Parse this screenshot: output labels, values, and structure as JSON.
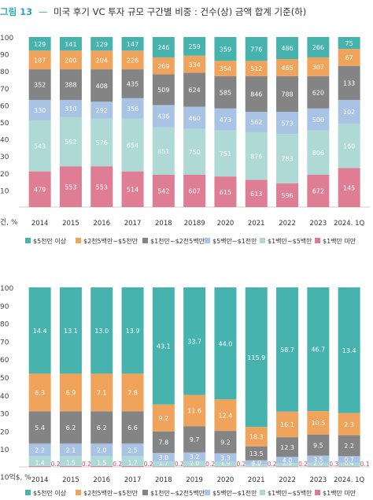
{
  "figure": {
    "label": "그림 13",
    "dash": "—",
    "title": "미국 후기 VC 투자 규모 구간별 비중 : 건수(상) 금액 합계 기준(하)"
  },
  "colors": {
    "title": "#2aa9b5",
    "c5": "#46b3ae",
    "c4": "#f0a35a",
    "c3": "#848484",
    "c2": "#a9c3e4",
    "c1": "#aed9d5",
    "c0": "#de7d94",
    "small_label": "#c94b6e"
  },
  "legend": [
    {
      "name": "$5천만 이상",
      "color_key": "c5"
    },
    {
      "name": "$2천5백만~$5천만",
      "color_key": "c4"
    },
    {
      "name": "$1천만~$2천5백만",
      "color_key": "c3"
    },
    {
      "name": "$5백만~$1천만",
      "color_key": "c2"
    },
    {
      "name": "$1백만~$5백만",
      "color_key": "c1"
    },
    {
      "name": "$1백만 미만",
      "color_key": "c0"
    }
  ],
  "chart_data": [
    {
      "type": "bar",
      "stacked": true,
      "unit_label": "건, %",
      "ylim": [
        0,
        100
      ],
      "yticks": [
        10,
        20,
        30,
        40,
        50,
        60,
        70,
        80,
        90,
        100
      ],
      "categories": [
        "2014",
        "2015",
        "2016",
        "2017",
        "2018",
        "20189",
        "2020",
        "2021",
        "2022",
        "2023",
        "2024. 1Q"
      ],
      "series": [
        {
          "name": "$1백만 미만",
          "counts": [
            479,
            553,
            553,
            514,
            542,
            607,
            615,
            613,
            596,
            672,
            145
          ],
          "share_pct": [
            21.0,
            24.0,
            24.0,
            21.0,
            19.0,
            19.0,
            18.0,
            16.0,
            14.0,
            19.0,
            23.0
          ]
        },
        {
          "name": "$1백만~$5백만",
          "counts": [
            543,
            592,
            576,
            654,
            651,
            750,
            751,
            876,
            783,
            806,
            160
          ],
          "share_pct": [
            30.0,
            29.0,
            28.0,
            31.0,
            28.0,
            27.0,
            27.0,
            28.0,
            29.0,
            26.0,
            26.0
          ]
        },
        {
          "name": "$5백만~$1천만",
          "counts": [
            330,
            310,
            292,
            356,
            436,
            460,
            473,
            562,
            573,
            500,
            102
          ],
          "share_pct": [
            12.0,
            10.0,
            10.0,
            12.0,
            13.0,
            13.0,
            13.0,
            12.0,
            13.0,
            13.0,
            14.0
          ]
        },
        {
          "name": "$1천만~$2천5백만",
          "counts": [
            352,
            388,
            408,
            435,
            509,
            624,
            585,
            846,
            788,
            620,
            133
          ],
          "share_pct": [
            18.0,
            18.0,
            19.0,
            17.0,
            18.0,
            20.0,
            19.0,
            21.0,
            21.0,
            19.0,
            20.0
          ]
        },
        {
          "name": "$2천5백만~$5천만",
          "counts": [
            187,
            200,
            204,
            226,
            269,
            334,
            354,
            512,
            465,
            307,
            67
          ],
          "share_pct": [
            11.0,
            11.0,
            11.0,
            11.0,
            10.0,
            10.0,
            9.0,
            9.0,
            10.0,
            11.0,
            10.0
          ]
        },
        {
          "name": "$5천만 이상",
          "counts": [
            129,
            141,
            129,
            147,
            246,
            259,
            359,
            776,
            486,
            266,
            75
          ],
          "share_pct": [
            8.0,
            8.0,
            8.0,
            8.0,
            12.0,
            11.0,
            14.0,
            14.0,
            13.0,
            12.0,
            7.0
          ]
        }
      ]
    },
    {
      "type": "bar",
      "stacked": true,
      "unit_label": "10억$, %",
      "ylim": [
        0,
        100
      ],
      "yticks": [
        10,
        20,
        30,
        40,
        50,
        60,
        70,
        80,
        90,
        100
      ],
      "categories": [
        "2014",
        "2015",
        "2016",
        "2017",
        "2018",
        "2019",
        "2020",
        "2021",
        "2022",
        "2023",
        "2024. 1Q"
      ],
      "series": [
        {
          "name": "$1백만 미만",
          "amounts": [
            "0.2",
            "0.2",
            "0.2",
            "0.2",
            "0.2",
            "0.2",
            "0.2",
            "0.2",
            "0.2",
            "0.3",
            "0.1"
          ],
          "share_pct": [
            0.5,
            0.5,
            0.5,
            0.5,
            0.3,
            0.3,
            0.3,
            0.1,
            0.2,
            0.2,
            0.3
          ]
        },
        {
          "name": "$1백만~$5백만",
          "amounts": [
            "1.4",
            "1.5",
            "1.5",
            "1.7",
            "1.7",
            "2.0",
            "1.9",
            "2.3",
            "2.0",
            "2.0",
            "0.4"
          ],
          "share_pct": [
            5.5,
            5.5,
            5.5,
            5.5,
            2.7,
            3.0,
            2.5,
            1.3,
            1.9,
            2.2,
            2.0
          ]
        },
        {
          "name": "$5백만~$1천만",
          "amounts": [
            "2.2",
            "2.1",
            "2.0",
            "2.5",
            "3.0",
            "3.2",
            "3.3",
            "4.0",
            "4.0",
            "3.5",
            "0.7"
          ],
          "share_pct": [
            7.0,
            7.0,
            7.0,
            7.0,
            4.8,
            4.8,
            4.8,
            2.3,
            3.6,
            3.9,
            3.7
          ]
        },
        {
          "name": "$1천만~$2천5백만",
          "amounts": [
            "5.4",
            "6.2",
            "6.2",
            "6.6",
            "7.8",
            "9.7",
            "9.2",
            "13.5",
            "12.3",
            "9.5",
            "2.2"
          ],
          "share_pct": [
            18.0,
            18.0,
            18.0,
            18.0,
            12.0,
            14.5,
            12.5,
            7.8,
            10.9,
            11.8,
            11.7
          ]
        },
        {
          "name": "$2천5백만~$5천만",
          "amounts": [
            "6.3",
            "6.9",
            "7.1",
            "7.8",
            "9.2",
            "11.6",
            "12.4",
            "18.3",
            "16.1",
            "10.5",
            "2.3"
          ],
          "share_pct": [
            21.0,
            21.0,
            21.0,
            21.0,
            15.0,
            17.5,
            17.5,
            10.8,
            14.2,
            13.0,
            12.3
          ]
        },
        {
          "name": "$5천만 이상",
          "amounts": [
            "14.4",
            "13.1",
            "13.0",
            "13.9",
            "43.1",
            "33.7",
            "44.0",
            "115.9",
            "58.7",
            "46.7",
            "13.4"
          ],
          "share_pct": [
            48.0,
            48.0,
            48.0,
            48.0,
            65.2,
            59.9,
            62.4,
            77.7,
            69.2,
            68.9,
            70.0
          ]
        }
      ]
    }
  ]
}
